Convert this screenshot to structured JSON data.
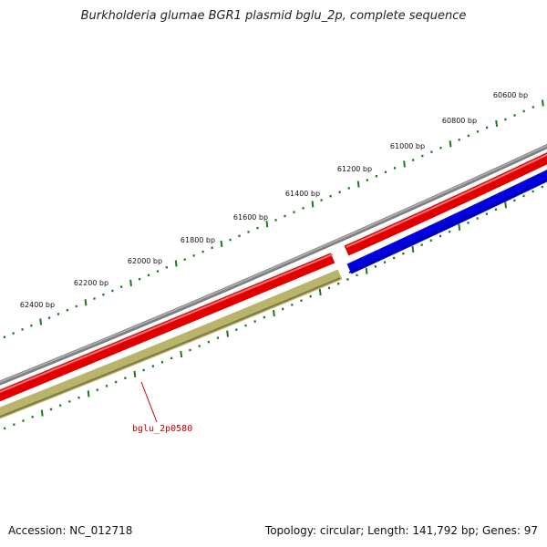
{
  "title": "Burkholderia glumae BGR1 plasmid bglu_2p, complete sequence",
  "accession": "Accession: NC_012718",
  "summary": "Topology: circular; Length: 141,792 bp; Genes: 97",
  "colors": {
    "background": "#ffffff",
    "backbone": "#808080",
    "forward_gene": "#e00000",
    "reverse_gene": "#0000e0",
    "pseudogene": "#b8b46c",
    "tick": "#1a7a1a",
    "gene_label": "#cc0000"
  },
  "ruler_labels": [
    "60600 bp",
    "60800 bp",
    "61000 bp",
    "61200 bp",
    "61400 bp",
    "61600 bp",
    "61800 bp",
    "62000 bp",
    "62200 bp",
    "62400 bp"
  ],
  "gene_labels": [
    {
      "name": "bglu_2p0580",
      "feature": "pseudogene"
    }
  ]
}
